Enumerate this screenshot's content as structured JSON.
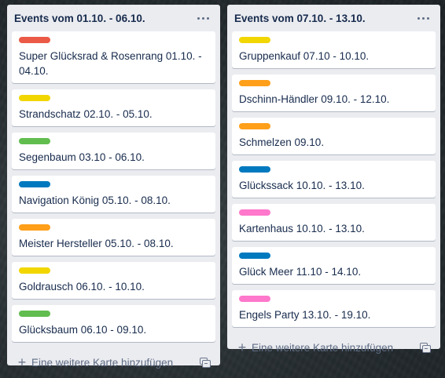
{
  "colors": {
    "red": "#eb5a46",
    "yellow": "#f2d600",
    "green": "#61bd4f",
    "blue": "#0079bf",
    "orange": "#ff9f1a",
    "pink": "#ff78cb"
  },
  "lists": [
    {
      "title": "Events vom 01.10. - 06.10.",
      "add_card_label": "Eine weitere Karte hinzufügen",
      "cards": [
        {
          "label_color": "#eb5a46",
          "title": "Super Glücksrad & Rosenrang 01.10. - 04.10."
        },
        {
          "label_color": "#f2d600",
          "title": "Strandschatz 02.10. - 05.10."
        },
        {
          "label_color": "#61bd4f",
          "title": "Segenbaum 03.10 - 06.10."
        },
        {
          "label_color": "#0079bf",
          "title": "Navigation König 05.10. - 08.10."
        },
        {
          "label_color": "#ff9f1a",
          "title": "Meister Hersteller 05.10. - 08.10."
        },
        {
          "label_color": "#f2d600",
          "title": "Goldrausch 06.10. - 10.10."
        },
        {
          "label_color": "#61bd4f",
          "title": "Glücksbaum 06.10 - 09.10."
        }
      ]
    },
    {
      "title": "Events vom 07.10. - 13.10.",
      "add_card_label": "Eine weitere Karte hinzufügen",
      "cards": [
        {
          "label_color": "#f2d600",
          "title": "Gruppenkauf 07.10 - 10.10."
        },
        {
          "label_color": "#ff9f1a",
          "title": "Dschinn-Händler 09.10. - 12.10."
        },
        {
          "label_color": "#ff9f1a",
          "title": "Schmelzen 09.10."
        },
        {
          "label_color": "#0079bf",
          "title": "Glückssack 10.10. - 13.10."
        },
        {
          "label_color": "#ff78cb",
          "title": "Kartenhaus 10.10. - 13.10."
        },
        {
          "label_color": "#0079bf",
          "title": "Glück Meer 11.10 - 14.10."
        },
        {
          "label_color": "#ff78cb",
          "title": "Engels Party 13.10. - 19.10."
        }
      ]
    }
  ]
}
